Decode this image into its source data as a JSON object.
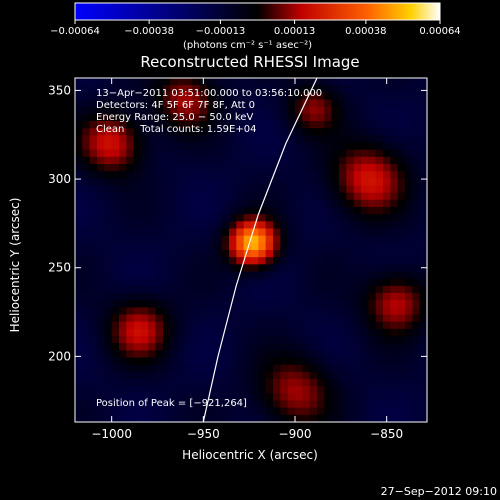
{
  "chart_data": {
    "type": "heatmap",
    "title": "Reconstructed RHESSI Image",
    "xlabel": "Heliocentric X (arcsec)",
    "ylabel": "Heliocentric Y (arcsec)",
    "xlim": [
      -1020,
      -828
    ],
    "ylim": [
      163,
      357
    ],
    "x_ticks": [
      {
        "value": -1000,
        "label": "−1000"
      },
      {
        "value": -950,
        "label": "−950"
      },
      {
        "value": -900,
        "label": "−900"
      },
      {
        "value": -850,
        "label": "−850"
      }
    ],
    "y_ticks": [
      {
        "value": 200,
        "label": "200"
      },
      {
        "value": 250,
        "label": "250"
      },
      {
        "value": 300,
        "label": "300"
      },
      {
        "value": 350,
        "label": "350"
      }
    ],
    "colorbar": {
      "range": [
        -0.00064,
        0.00064
      ],
      "ticks": [
        {
          "value": -0.00064,
          "label": "−0.00064"
        },
        {
          "value": -0.00038,
          "label": "−0.00038"
        },
        {
          "value": -0.00013,
          "label": "−0.00013"
        },
        {
          "value": 0.00013,
          "label": "0.00013"
        },
        {
          "value": 0.00038,
          "label": "0.00038"
        },
        {
          "value": 0.00064,
          "label": "0.00064"
        }
      ],
      "units": "(photons cm⁻² s⁻¹ asec⁻²)",
      "colors": [
        "#0000ff",
        "#000000",
        "#ff0000",
        "#ffa000",
        "#ffffff"
      ]
    },
    "sources": [
      {
        "x": -923,
        "y": 264,
        "amp": 1.0,
        "sigma": 9
      },
      {
        "x": -1000,
        "y": 320,
        "amp": 0.5,
        "sigma": 12
      },
      {
        "x": -985,
        "y": 215,
        "amp": 0.45,
        "sigma": 12
      },
      {
        "x": -860,
        "y": 300,
        "amp": 0.5,
        "sigma": 14
      },
      {
        "x": -845,
        "y": 230,
        "amp": 0.45,
        "sigma": 12
      },
      {
        "x": -900,
        "y": 180,
        "amp": 0.4,
        "sigma": 14
      },
      {
        "x": -960,
        "y": 345,
        "amp": 0.4,
        "sigma": 12
      },
      {
        "x": -890,
        "y": 340,
        "amp": 0.35,
        "sigma": 10
      }
    ],
    "limb_points": [
      [
        -950,
        163
      ],
      [
        -942,
        200
      ],
      [
        -932,
        240
      ],
      [
        -920,
        280
      ],
      [
        -905,
        320
      ],
      [
        -888,
        357
      ]
    ],
    "peak_label": "Position of Peak = [−921,264]"
  },
  "info_lines": [
    "13−Apr−2011 03:51:00.000 to 03:56:10.000",
    "Detectors: 4F 5F 6F 7F 8F, Att 0",
    "Energy Range: 25.0 − 50.0 keV",
    "Clean     Total counts: 1.59E+04"
  ],
  "timestamp": "27−Sep−2012 09:10"
}
